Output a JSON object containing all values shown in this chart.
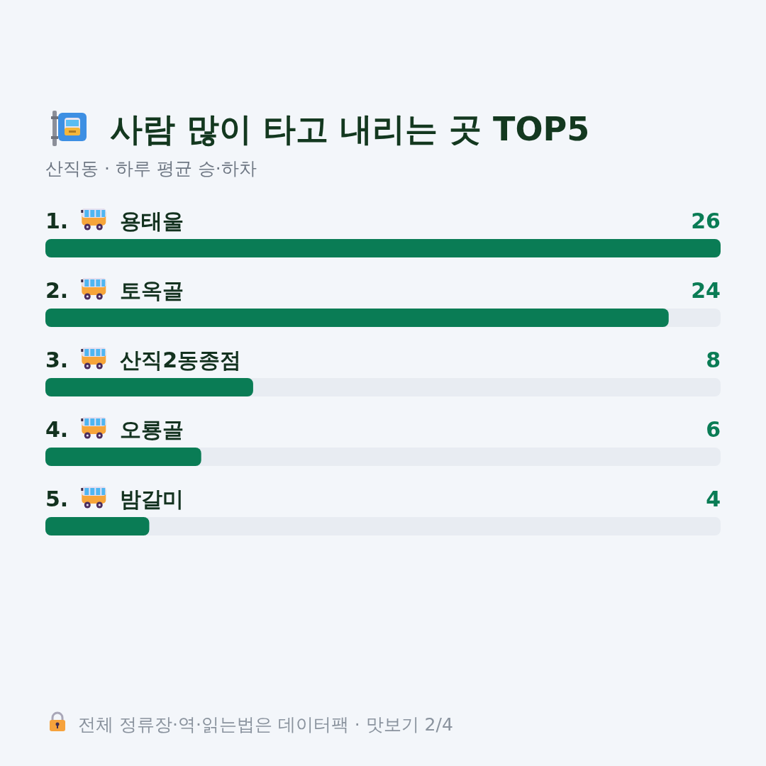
{
  "chart_data": {
    "type": "bar",
    "orientation": "horizontal",
    "title": "사람 많이 타고 내리는 곳 TOP5",
    "subtitle": "산직동 · 하루 평균 승·하차",
    "categories": [
      "1. 용태울",
      "2. 토옥골",
      "3. 산직2동종점",
      "4. 오룡골",
      "5. 밤갈미"
    ],
    "values": [
      26,
      24,
      8,
      6,
      4
    ],
    "color": "#0a7c55",
    "data_labels": true,
    "annotations": [
      "전체 정류장·역·읽는법은 데이터팩 · 맛보기 2/4"
    ]
  }
}
